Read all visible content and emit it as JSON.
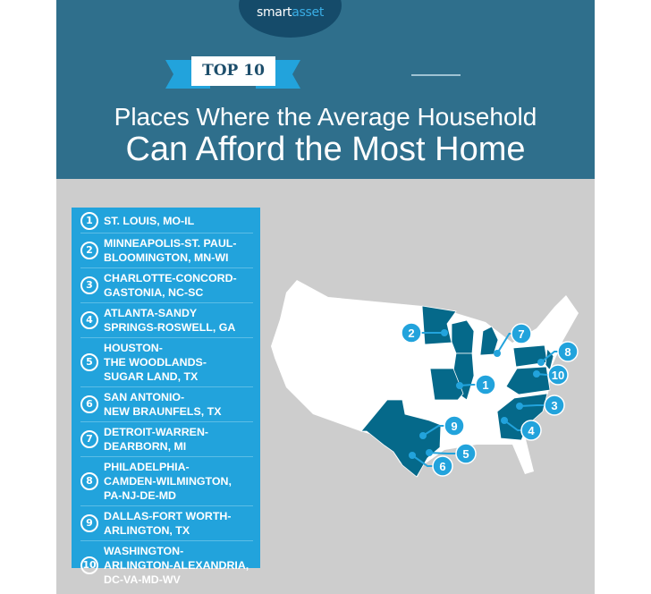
{
  "header": {
    "logo": "smartasset",
    "badge": "TOP 10",
    "title_line1": "Places Where the Average Household",
    "title_line2": "Can Afford the Most Home"
  },
  "colors": {
    "header": "#2f6f8c",
    "accent": "#22a3dc",
    "highlight_state": "#05698a",
    "background": "#cdcdcd"
  },
  "list": [
    {
      "rank": "1",
      "name": "ST. LOUIS, MO-IL"
    },
    {
      "rank": "2",
      "name": "MINNEAPOLIS-ST. PAUL-\nBLOOMINGTON, MN-WI"
    },
    {
      "rank": "3",
      "name": "CHARLOTTE-CONCORD-\nGASTONIA, NC-SC"
    },
    {
      "rank": "4",
      "name": "ATLANTA-SANDY\nSPRINGS-ROSWELL, GA"
    },
    {
      "rank": "5",
      "name": "HOUSTON-\nTHE WOODLANDS-\nSUGAR LAND, TX"
    },
    {
      "rank": "6",
      "name": "SAN ANTONIO-\nNEW BRAUNFELS, TX"
    },
    {
      "rank": "7",
      "name": "DETROIT-WARREN-\nDEARBORN, MI"
    },
    {
      "rank": "8",
      "name": "PHILADELPHIA-\nCAMDEN-WILMINGTON,\nPA-NJ-DE-MD"
    },
    {
      "rank": "9",
      "name": "DALLAS-FORT WORTH-\nARLINGTON, TX"
    },
    {
      "rank": "10",
      "name": "WASHINGTON-\nARLINGTON-ALEXANDRIA,\nDC-VA-MD-WV"
    }
  ],
  "map": {
    "highlighted_states": [
      "MN",
      "WI",
      "IL",
      "MO",
      "MI",
      "PA",
      "NJ",
      "DE",
      "MD",
      "WV",
      "VA",
      "NC",
      "SC",
      "GA",
      "TX"
    ]
  }
}
